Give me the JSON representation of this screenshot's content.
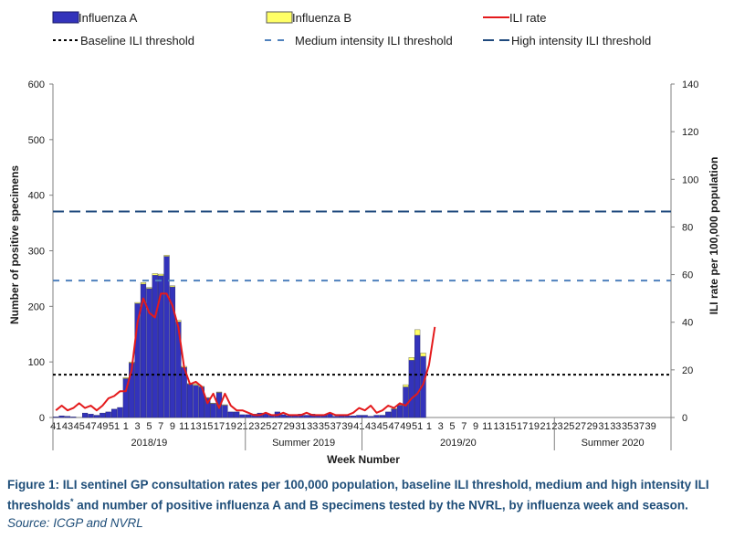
{
  "legend": {
    "influenza_a": "Influenza A",
    "influenza_b": "Influenza B",
    "ili_rate": "ILI rate",
    "baseline": "Baseline ILI threshold",
    "medium": "Medium intensity ILI threshold",
    "high": "High intensity ILI threshold"
  },
  "colors": {
    "influenza_a": "#3333bb",
    "influenza_b": "#ffff66",
    "ili_rate": "#e41a1c",
    "baseline": "#000000",
    "medium": "#4f81bd",
    "high": "#1f497d"
  },
  "caption": {
    "main": "Figure 1: ILI sentinel GP consultation rates per 100,000 population, baseline ILI threshold, medium and high intensity ILI thresholds",
    "sup": "*",
    "rest": " and number of positive influenza A and B specimens tested by the NVRL, by influenza week and season.",
    "source": "Source: ICGP and NVRL"
  },
  "chart_data": {
    "type": "bar",
    "xlabel": "Week Number",
    "ylabel": "Number of positive specimens",
    "y2label": "ILI rate per 100,000 population",
    "ylim": [
      0,
      600
    ],
    "y2lim": [
      0,
      140
    ],
    "yticks": [
      0,
      100,
      200,
      300,
      400,
      500,
      600
    ],
    "y2ticks": [
      0,
      20,
      40,
      60,
      80,
      100,
      120,
      140
    ],
    "grid": false,
    "legend_position": "top",
    "seasons": [
      "2018/19",
      "Summer 2019",
      "2019/20",
      "Summer 2020"
    ],
    "tick_labels": [
      "41",
      "43",
      "45",
      "47",
      "49",
      "51",
      "1",
      "3",
      "5",
      "7",
      "9",
      "11",
      "13",
      "15",
      "17",
      "19",
      "21",
      "23",
      "25",
      "27",
      "29",
      "31",
      "33",
      "35",
      "37",
      "39",
      "41",
      "43",
      "45",
      "47",
      "49",
      "51",
      "1",
      "3",
      "5",
      "7",
      "9",
      "11",
      "13",
      "15",
      "17",
      "19",
      "21",
      "23",
      "25",
      "27",
      "29",
      "31",
      "33",
      "35",
      "37",
      "39"
    ],
    "weeks_per_season": [
      33,
      20,
      33,
      20
    ],
    "thresholds": {
      "baseline": 18,
      "medium": 57.5,
      "high": 86.5
    },
    "series": [
      {
        "name": "Influenza A",
        "kind": "bar",
        "values": [
          1,
          3,
          2,
          1,
          0,
          8,
          6,
          4,
          8,
          10,
          15,
          18,
          70,
          98,
          205,
          240,
          232,
          256,
          255,
          290,
          235,
          172,
          90,
          60,
          58,
          55,
          35,
          25,
          45,
          22,
          10,
          10,
          5,
          5,
          6,
          8,
          7,
          5,
          10,
          5,
          3,
          4,
          6,
          4,
          6,
          5,
          4,
          8,
          2,
          5,
          3,
          3,
          4,
          4,
          2,
          4,
          4,
          10,
          15,
          22,
          55,
          103,
          148,
          110,
          0,
          0,
          0,
          0,
          0,
          0,
          0,
          0,
          0,
          0,
          0,
          0,
          0,
          0,
          0,
          0,
          0,
          0,
          0,
          0,
          0,
          0,
          0,
          0,
          0,
          0,
          0,
          0,
          0,
          0,
          0,
          0,
          0,
          0,
          0,
          0,
          0,
          0,
          0,
          0,
          0,
          0,
          0,
          0,
          0,
          0
        ]
      },
      {
        "name": "Influenza B",
        "kind": "bar",
        "values": [
          0,
          0,
          0,
          0,
          0,
          0,
          0,
          0,
          0,
          0,
          0,
          0,
          2,
          2,
          2,
          3,
          2,
          3,
          3,
          2,
          2,
          3,
          2,
          1,
          2,
          1,
          1,
          1,
          1,
          1,
          0,
          0,
          0,
          0,
          0,
          0,
          0,
          0,
          0,
          0,
          0,
          0,
          0,
          0,
          0,
          0,
          0,
          0,
          0,
          0,
          0,
          0,
          0,
          0,
          0,
          0,
          0,
          0,
          1,
          1,
          4,
          5,
          10,
          6,
          0,
          0,
          0,
          0,
          0,
          0,
          0,
          0,
          0,
          0,
          0,
          0,
          0,
          0,
          0,
          0,
          0,
          0,
          0,
          0,
          0,
          0,
          0,
          0,
          0,
          0,
          0,
          0,
          0,
          0,
          0,
          0,
          0,
          0,
          0,
          0,
          0,
          0,
          0,
          0,
          0,
          0,
          0,
          0,
          0,
          0
        ]
      },
      {
        "name": "ILI rate",
        "kind": "line",
        "axis": "y2",
        "values": [
          3,
          5,
          3,
          4,
          6,
          4,
          5,
          3,
          5,
          8,
          9,
          11,
          11,
          20,
          40,
          50,
          44,
          42,
          52,
          52,
          47,
          38,
          21,
          14,
          15,
          13,
          6,
          10,
          4,
          10,
          5,
          3,
          3,
          2,
          1,
          1,
          2,
          1,
          1,
          2,
          1,
          1,
          1,
          2,
          1,
          1,
          1,
          2,
          1,
          1,
          1,
          2,
          4,
          3,
          5,
          2,
          3,
          5,
          4,
          6,
          5,
          8,
          10,
          14,
          22,
          38
        ]
      }
    ]
  }
}
